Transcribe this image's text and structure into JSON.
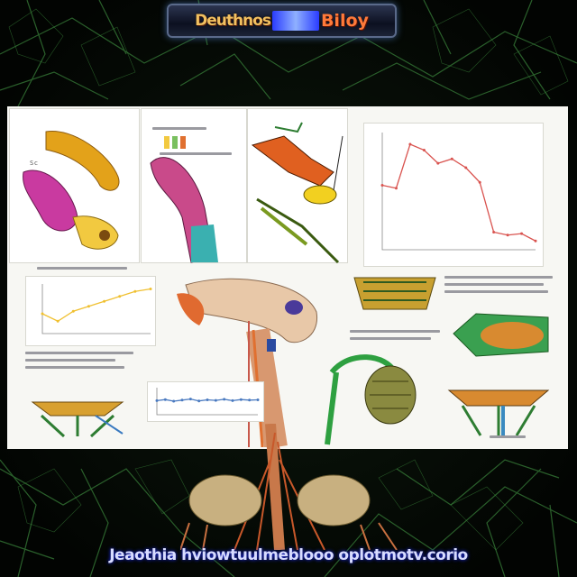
{
  "banner": {
    "left_text": "Deuthnos",
    "right_text": "Biloy"
  },
  "bottom_caption": "Jeaothia hviowtuulmeblooo oplotmotv.corio",
  "chart_data": [
    {
      "type": "line",
      "title": "",
      "xlabel": "",
      "ylabel": "",
      "x": [
        1,
        2,
        3,
        4,
        5,
        6,
        7,
        8,
        9,
        10,
        11,
        12
      ],
      "series": [
        {
          "values": [
            6.4,
            6.2,
            9.2,
            8.8,
            7.9,
            8.2,
            7.6,
            6.6,
            3.2,
            3.0,
            3.1,
            2.6
          ]
        }
      ],
      "ylim": [
        2,
        10
      ]
    },
    {
      "type": "line",
      "title": "",
      "xlabel": "",
      "ylabel": "",
      "x": [
        0,
        1,
        2,
        3,
        4,
        5,
        6,
        7
      ],
      "series": [
        {
          "values": [
            4,
            2.5,
            4.5,
            5.5,
            6.5,
            7.5,
            8.5,
            9
          ]
        }
      ],
      "ylim": [
        0,
        10
      ]
    },
    {
      "type": "line",
      "title": "",
      "xlabel": "",
      "ylabel": "",
      "x": [
        0,
        1,
        2,
        3,
        4,
        5,
        6,
        7,
        8,
        9,
        10,
        11,
        12
      ],
      "series": [
        {
          "values": [
            5.2,
            5.6,
            5.0,
            5.4,
            5.8,
            5.1,
            5.5,
            5.3,
            5.7,
            5.2,
            5.6,
            5.4,
            5.5
          ]
        }
      ],
      "ylim": [
        0,
        10
      ]
    }
  ],
  "colors": {
    "accent_red": "#d9534f",
    "accent_yellow": "#f0c030",
    "vein_green": "#2e7d32"
  }
}
